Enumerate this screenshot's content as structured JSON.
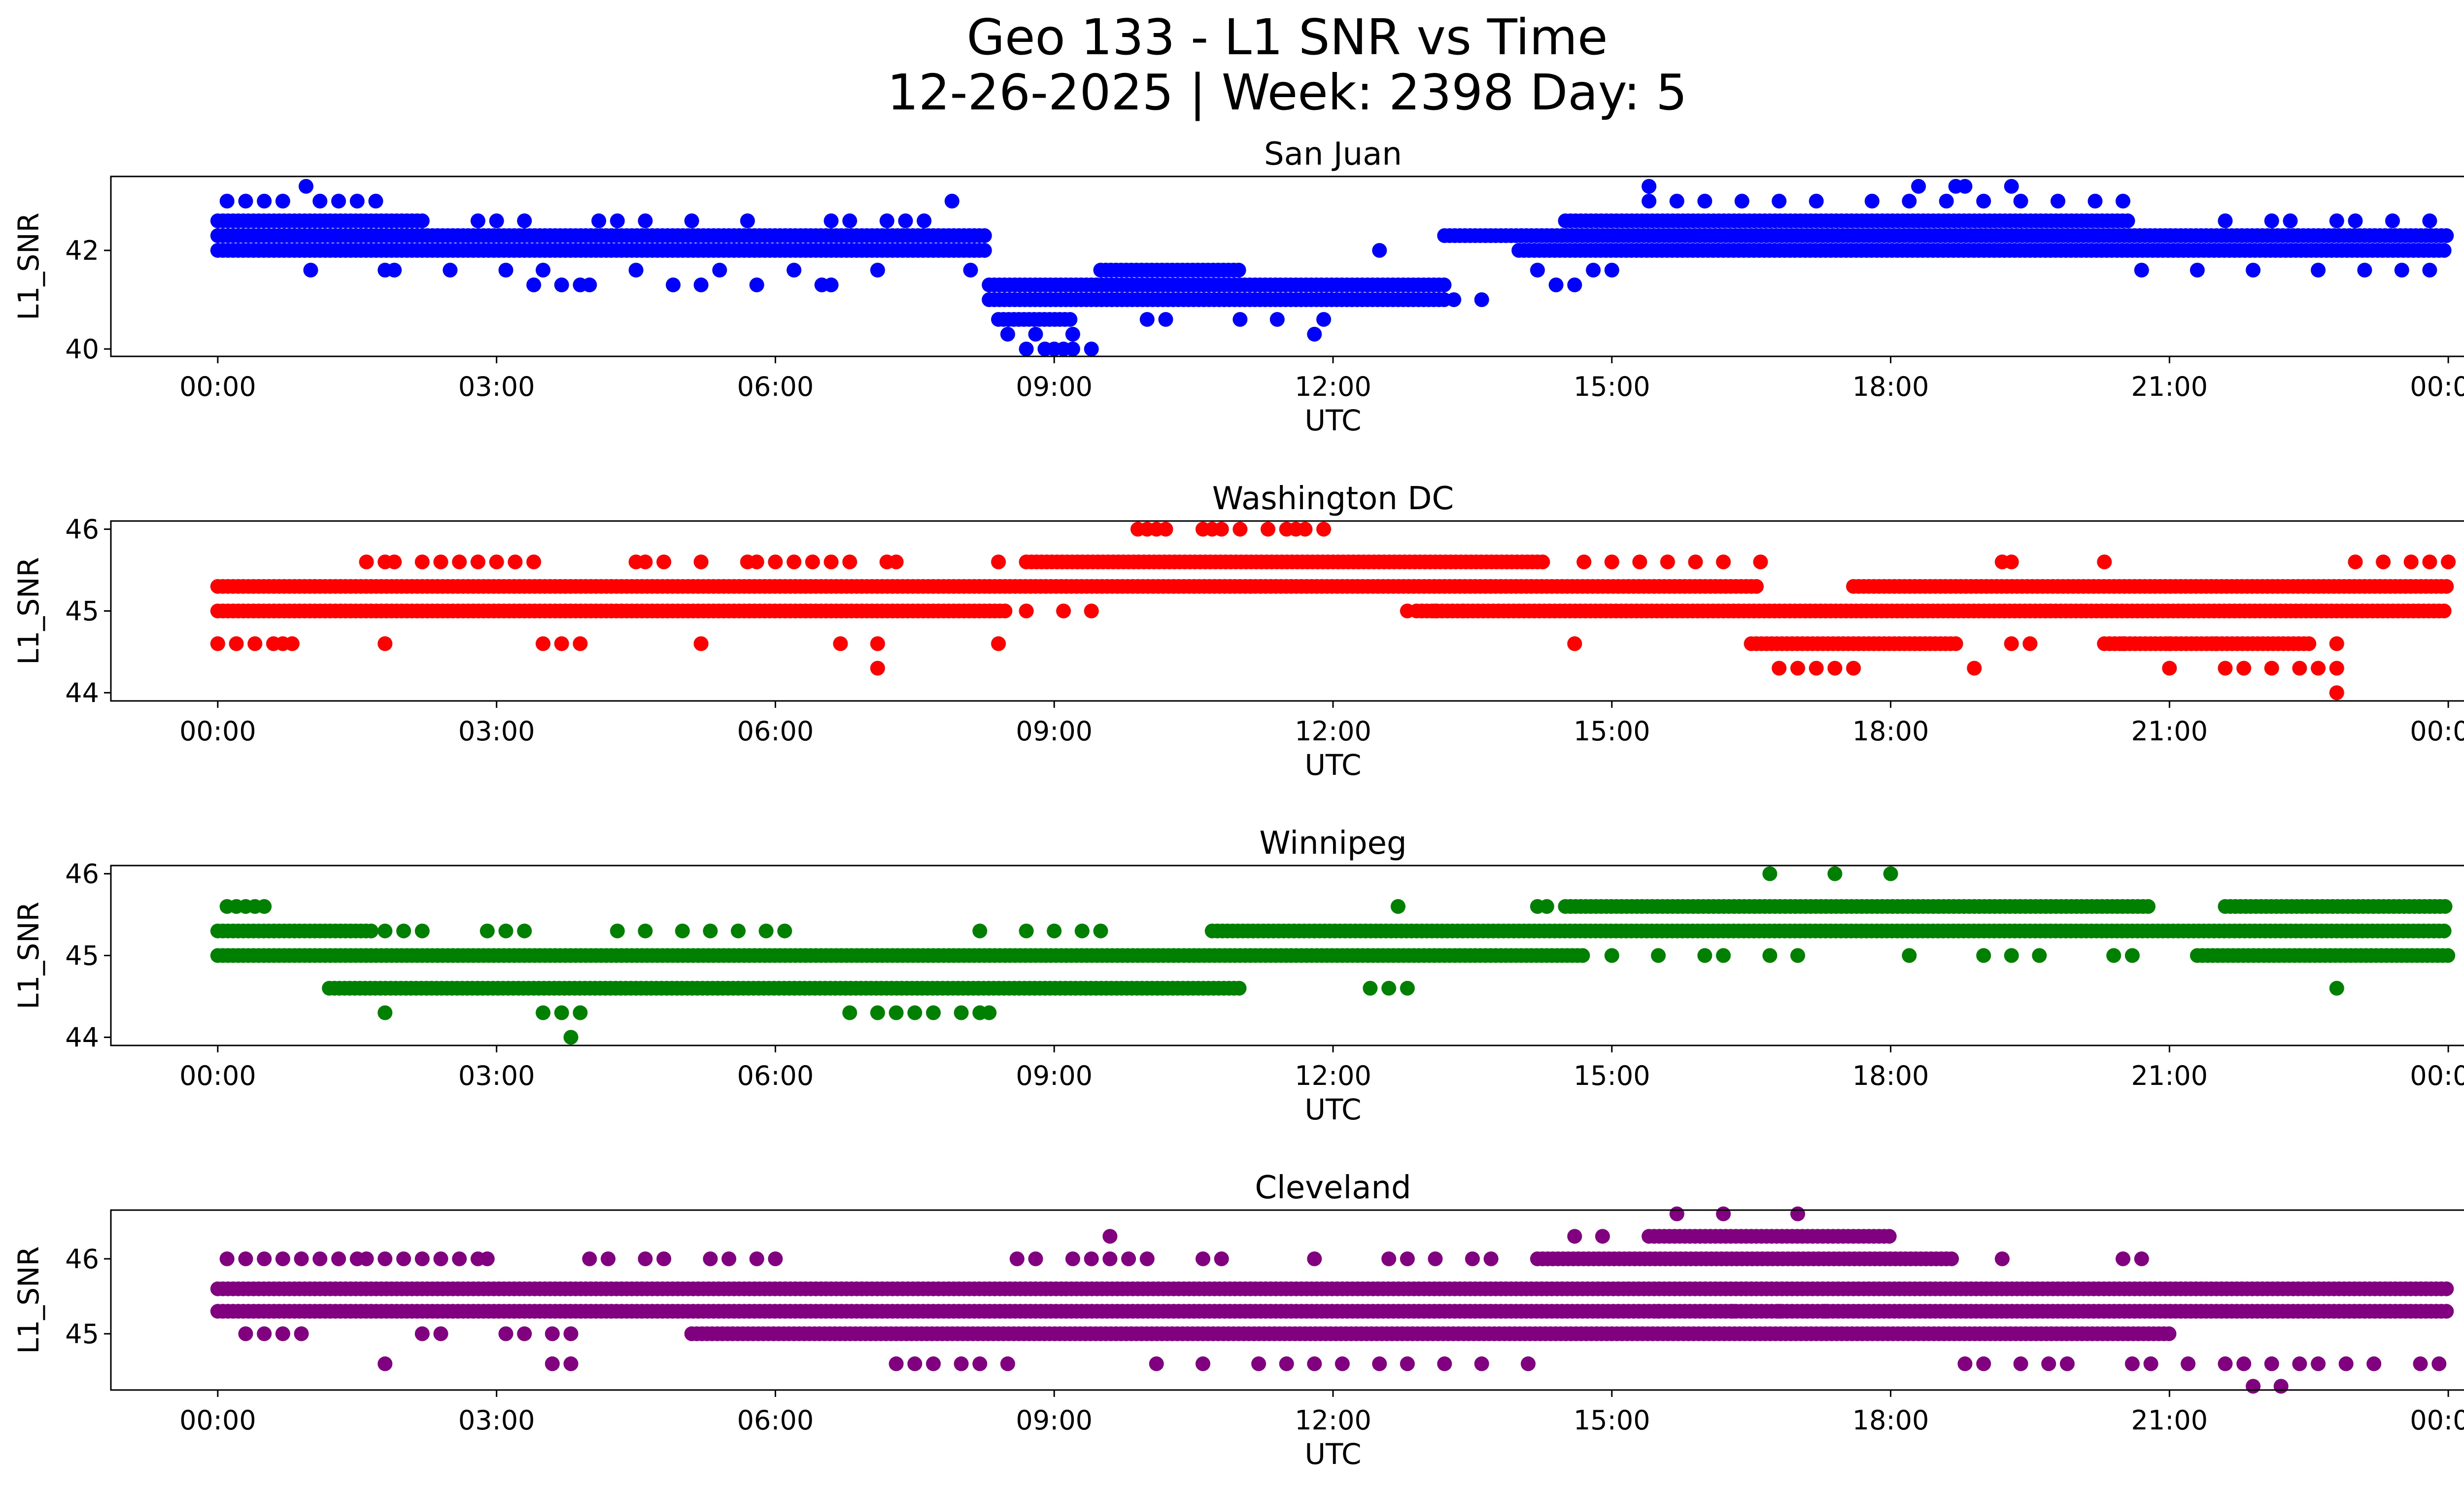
{
  "chart_data": {
    "type": "scatter",
    "suptitle": [
      "Geo 133 - L1 SNR vs Time",
      "12-26-2025 | Week: 2398 Day: 5"
    ],
    "xlabel": "UTC",
    "x_ticks": [
      "00:00",
      "03:00",
      "06:00",
      "09:00",
      "12:00",
      "15:00",
      "18:00",
      "21:00",
      "00:00"
    ],
    "x_range_hours": [
      -1.15,
      25.15
    ],
    "subplots": [
      {
        "title": "San Juan",
        "color": "#0000ff",
        "ylabel": "L1_SNR",
        "ylim": [
          39.85,
          43.5
        ],
        "yticks": [
          40,
          42
        ],
        "bands": [
          {
            "y": 42.3,
            "x": [
              0,
              8.3
            ]
          },
          {
            "y": 42.0,
            "x": [
              0,
              8.3
            ]
          },
          {
            "y": 42.6,
            "x": [
              0,
              2.2
            ]
          },
          {
            "y": 42.3,
            "x": [
              13.2,
              24
            ]
          },
          {
            "y": 42.6,
            "x": [
              14.5,
              20.6
            ]
          },
          {
            "y": 42.0,
            "x": [
              14.0,
              24
            ]
          },
          {
            "y": 41.3,
            "x": [
              8.3,
              13.2
            ]
          },
          {
            "y": 41.0,
            "x": [
              8.3,
              13.2
            ]
          },
          {
            "y": 41.6,
            "x": [
              9.5,
              11.0
            ]
          },
          {
            "y": 40.6,
            "x": [
              8.4,
              9.2
            ]
          }
        ],
        "scatter": [
          {
            "y": 43.0,
            "x": [
              0.1,
              0.3,
              0.5,
              0.7,
              1.1,
              1.3,
              1.5,
              1.7,
              7.9,
              15.4,
              15.7,
              16.0,
              16.4,
              16.8,
              17.2,
              17.8,
              18.2,
              18.6,
              19.0,
              19.4,
              19.8,
              20.2,
              20.5
            ]
          },
          {
            "y": 43.3,
            "x": [
              0.95,
              15.4,
              18.3,
              18.7,
              18.8,
              19.3
            ]
          },
          {
            "y": 42.6,
            "x": [
              2.8,
              3.0,
              3.3,
              4.1,
              4.3,
              4.6,
              5.1,
              5.7,
              6.6,
              6.8,
              7.2,
              7.4,
              7.6,
              21.6,
              22.1,
              22.3,
              22.8,
              23.0,
              23.4,
              23.8
            ]
          },
          {
            "y": 41.6,
            "x": [
              1.0,
              1.8,
              1.9,
              2.5,
              3.1,
              3.5,
              4.5,
              5.4,
              6.2,
              7.1,
              8.1,
              14.2,
              14.8,
              15.0,
              20.7,
              21.3,
              21.9,
              22.6,
              23.1,
              23.5,
              23.8
            ]
          },
          {
            "y": 41.3,
            "x": [
              3.4,
              3.7,
              3.9,
              4.0,
              4.9,
              5.2,
              5.8,
              6.5,
              6.6,
              14.4,
              14.6
            ]
          },
          {
            "y": 40.6,
            "x": [
              10.0,
              10.2,
              11.0,
              11.4,
              11.9
            ]
          },
          {
            "y": 40.3,
            "x": [
              8.5,
              8.8,
              9.2,
              11.8
            ]
          },
          {
            "y": 40.0,
            "x": [
              8.7,
              8.9,
              9.0,
              9.1,
              9.2,
              9.4
            ]
          },
          {
            "y": 42.0,
            "x": [
              12.5
            ]
          },
          {
            "y": 41.0,
            "x": [
              13.3,
              13.6
            ]
          }
        ]
      },
      {
        "title": "Washington DC",
        "color": "#ff0000",
        "ylabel": "L1_SNR",
        "ylim": [
          43.9,
          46.1
        ],
        "yticks": [
          44,
          45,
          46
        ],
        "bands": [
          {
            "y": 45.3,
            "x": [
              0,
              16.6
            ]
          },
          {
            "y": 45.0,
            "x": [
              0,
              8.5
            ]
          },
          {
            "y": 45.6,
            "x": [
              8.7,
              14.3
            ]
          },
          {
            "y": 45.0,
            "x": [
              12.9,
              24
            ]
          },
          {
            "y": 44.6,
            "x": [
              16.5,
              18.7
            ]
          },
          {
            "y": 44.6,
            "x": [
              20.3,
              22.5
            ]
          },
          {
            "y": 45.3,
            "x": [
              17.6,
              24
            ]
          }
        ],
        "scatter": [
          {
            "y": 46.0,
            "x": [
              9.9,
              10.0,
              10.1,
              10.2,
              10.6,
              10.7,
              10.8,
              11.0,
              11.3,
              11.5,
              11.6,
              11.7,
              11.9
            ]
          },
          {
            "y": 45.6,
            "x": [
              1.6,
              1.8,
              1.9,
              2.2,
              2.4,
              2.6,
              2.8,
              3.0,
              3.2,
              3.4,
              4.5,
              4.6,
              4.8,
              5.2,
              5.7,
              5.8,
              6.0,
              6.2,
              6.4,
              6.6,
              6.8,
              7.2,
              7.3,
              8.4,
              14.7,
              15.0,
              15.3,
              15.6,
              15.9,
              16.2,
              16.6,
              19.2,
              19.3,
              20.3,
              23.0,
              23.3,
              23.6,
              23.8,
              24.0
            ]
          },
          {
            "y": 44.6,
            "x": [
              0.0,
              0.2,
              0.4,
              0.6,
              0.7,
              0.8,
              1.8,
              3.5,
              3.7,
              3.9,
              5.2,
              6.7,
              7.1,
              8.4,
              14.6,
              19.3,
              19.5,
              20.5,
              21.0,
              21.5,
              22.8
            ]
          },
          {
            "y": 44.3,
            "x": [
              7.1,
              16.8,
              17.0,
              17.2,
              17.4,
              17.6,
              18.9,
              21.0,
              21.6,
              21.8,
              22.1,
              22.4,
              22.6,
              22.8
            ]
          },
          {
            "y": 45.0,
            "x": [
              8.7,
              9.1,
              9.4,
              12.8,
              13.1,
              13.4
            ]
          },
          {
            "y": 44.0,
            "x": [
              22.8
            ]
          }
        ]
      },
      {
        "title": "Winnipeg",
        "color": "#008000",
        "ylabel": "L1_SNR",
        "ylim": [
          43.9,
          46.1
        ],
        "yticks": [
          44,
          45,
          46
        ],
        "bands": [
          {
            "y": 45.0,
            "x": [
              0,
              14.7
            ]
          },
          {
            "y": 45.3,
            "x": [
              0,
              1.7
            ]
          },
          {
            "y": 44.6,
            "x": [
              1.2,
              11.0
            ]
          },
          {
            "y": 45.3,
            "x": [
              10.7,
              24
            ]
          },
          {
            "y": 45.6,
            "x": [
              14.5,
              20.8
            ]
          },
          {
            "y": 45.0,
            "x": [
              21.3,
              24
            ]
          },
          {
            "y": 45.6,
            "x": [
              21.6,
              24
            ]
          }
        ],
        "scatter": [
          {
            "y": 45.6,
            "x": [
              0.1,
              0.2,
              0.3,
              0.4,
              0.5,
              12.7,
              14.2,
              14.3
            ]
          },
          {
            "y": 45.3,
            "x": [
              1.8,
              2.0,
              2.2,
              2.9,
              3.1,
              3.3,
              4.3,
              4.6,
              5.0,
              5.3,
              5.6,
              5.9,
              6.1,
              8.2,
              8.7,
              9.0,
              9.3,
              9.5
            ]
          },
          {
            "y": 44.3,
            "x": [
              1.8,
              3.5,
              3.7,
              3.9,
              6.8,
              7.1,
              7.3,
              7.5,
              7.7,
              8.0,
              8.2,
              8.3
            ]
          },
          {
            "y": 44.0,
            "x": [
              3.8
            ]
          },
          {
            "y": 44.6,
            "x": [
              12.4,
              12.6,
              12.8,
              22.8
            ]
          },
          {
            "y": 45.0,
            "x": [
              15.0,
              15.5,
              16.0,
              16.2,
              16.7,
              17.0,
              18.2,
              19.0,
              19.3,
              19.6,
              20.4,
              20.6
            ]
          },
          {
            "y": 46.0,
            "x": [
              16.7,
              17.4,
              18.0
            ]
          }
        ]
      },
      {
        "title": "Cleveland",
        "color": "#800080",
        "ylabel": "L1_SNR",
        "ylim": [
          44.25,
          46.65
        ],
        "yticks": [
          45,
          46
        ],
        "bands": [
          {
            "y": 45.6,
            "x": [
              0,
              24
            ]
          },
          {
            "y": 45.3,
            "x": [
              0,
              24
            ]
          },
          {
            "y": 45.0,
            "x": [
              5.1,
              21.0
            ]
          },
          {
            "y": 46.0,
            "x": [
              14.2,
              18.7
            ]
          },
          {
            "y": 46.3,
            "x": [
              15.4,
              18.0
            ]
          }
        ],
        "scatter": [
          {
            "y": 46.0,
            "x": [
              0.1,
              0.3,
              0.5,
              0.7,
              0.9,
              1.1,
              1.3,
              1.5,
              1.6,
              1.8,
              2.0,
              2.2,
              2.4,
              2.6,
              2.8,
              2.9,
              4.0,
              4.2,
              4.6,
              4.8,
              5.3,
              5.5,
              5.8,
              6.0,
              8.6,
              8.8,
              9.2,
              9.4,
              9.6,
              9.8,
              10.0,
              10.6,
              10.8,
              11.8,
              12.6,
              12.8,
              13.1,
              13.5,
              13.7,
              19.2,
              20.5,
              20.7
            ]
          },
          {
            "y": 46.3,
            "x": [
              9.6,
              14.6,
              14.9
            ]
          },
          {
            "y": 46.6,
            "x": [
              15.7,
              16.2,
              17.0
            ]
          },
          {
            "y": 45.0,
            "x": [
              0.3,
              0.5,
              0.7,
              0.9,
              2.2,
              2.4,
              3.1,
              3.3,
              3.6,
              3.8
            ]
          },
          {
            "y": 44.6,
            "x": [
              1.8,
              3.6,
              3.8,
              7.3,
              7.5,
              7.7,
              8.0,
              8.2,
              8.5,
              10.1,
              10.6,
              11.2,
              11.5,
              11.8,
              12.1,
              12.5,
              12.8,
              13.2,
              13.6,
              14.1,
              18.8,
              19.0,
              19.4,
              19.7,
              19.9,
              20.6,
              20.8,
              21.2,
              21.6,
              21.8,
              22.1,
              22.4,
              22.6,
              22.9,
              23.2,
              23.7,
              23.9
            ]
          },
          {
            "y": 44.3,
            "x": [
              21.9,
              22.2
            ]
          },
          {
            "y": 45.3,
            "x": [
              15.5,
              16.0,
              16.3,
              16.5,
              16.8,
              17.1,
              17.3
            ]
          }
        ]
      }
    ]
  }
}
